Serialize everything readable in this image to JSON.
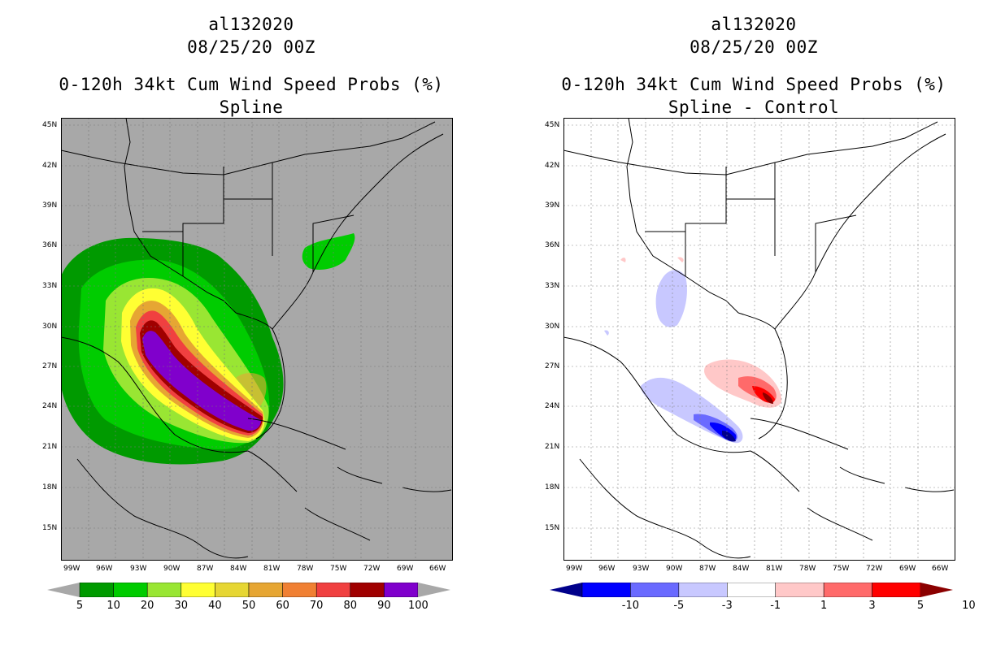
{
  "left_panel": {
    "line1": "al132020",
    "line2": "08/25/20 00Z",
    "line3": "0-120h 34kt Cum Wind Speed Probs (%)",
    "line4": "Spline",
    "background_color": "#a8a8a8",
    "colorbar": {
      "labels": [
        "5",
        "10",
        "20",
        "30",
        "40",
        "50",
        "60",
        "70",
        "80",
        "90",
        "100"
      ],
      "colors": [
        "#009a00",
        "#00cc00",
        "#99e633",
        "#ffff33",
        "#e6d633",
        "#e6a633",
        "#f08033",
        "#f04040",
        "#a00000",
        "#8000cc"
      ]
    }
  },
  "right_panel": {
    "line1": "al132020",
    "line2": "08/25/20 00Z",
    "line3": "0-120h 34kt Cum Wind Speed Probs (%)",
    "line4": "Spline - Control",
    "background_color": "#ffffff",
    "colorbar": {
      "labels": [
        "-10",
        "-5",
        "-3",
        "-1",
        "1",
        "3",
        "5",
        "10"
      ],
      "colors": [
        "#00008b",
        "#0000ff",
        "#6a6aff",
        "#c8c8ff",
        "#ffffff",
        "#ffc8c8",
        "#ff6a6a",
        "#ff0000",
        "#8b0000"
      ]
    }
  },
  "axes": {
    "y_ticks": [
      "45N",
      "42N",
      "39N",
      "36N",
      "33N",
      "30N",
      "27N",
      "24N",
      "21N",
      "18N",
      "15N"
    ],
    "x_ticks": [
      "99W",
      "96W",
      "93W",
      "90W",
      "87W",
      "84W",
      "81W",
      "78W",
      "75W",
      "72W",
      "69W",
      "66W"
    ]
  }
}
